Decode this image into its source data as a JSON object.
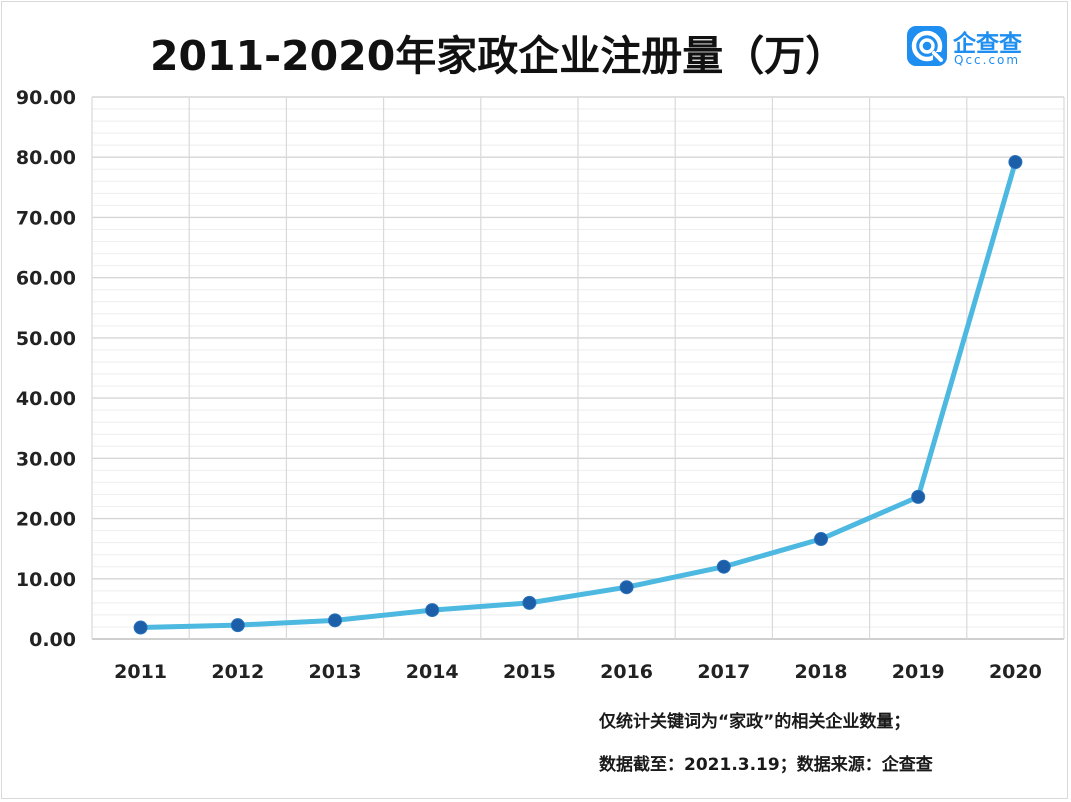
{
  "chart_data": {
    "type": "line",
    "title": "2011-2020年家政企业注册量（万）",
    "xlabel": "",
    "ylabel": "",
    "categories": [
      "2011",
      "2012",
      "2013",
      "2014",
      "2015",
      "2016",
      "2017",
      "2018",
      "2019",
      "2020"
    ],
    "series": [
      {
        "values": [
          1.9,
          2.3,
          3.1,
          4.8,
          6.0,
          8.6,
          12.0,
          16.6,
          23.6,
          79.2
        ]
      }
    ],
    "ylim": [
      0,
      90
    ],
    "yticks": [
      "0.00",
      "10.00",
      "20.00",
      "30.00",
      "40.00",
      "50.00",
      "60.00",
      "70.00",
      "80.00",
      "90.00"
    ],
    "grid": true,
    "legend": "none",
    "colors": {
      "line": "#4db8e0",
      "marker": "#1c5ea8",
      "grid": "#e3e3e3"
    }
  },
  "logo": {
    "name": "企查查",
    "domain": "Qcc.com",
    "color": "#1e8ef0"
  },
  "notes": {
    "line1": "仅统计关键词为“家政”的相关企业数量；",
    "line2": "数据截至：2021.3.19；数据来源：企查查"
  }
}
